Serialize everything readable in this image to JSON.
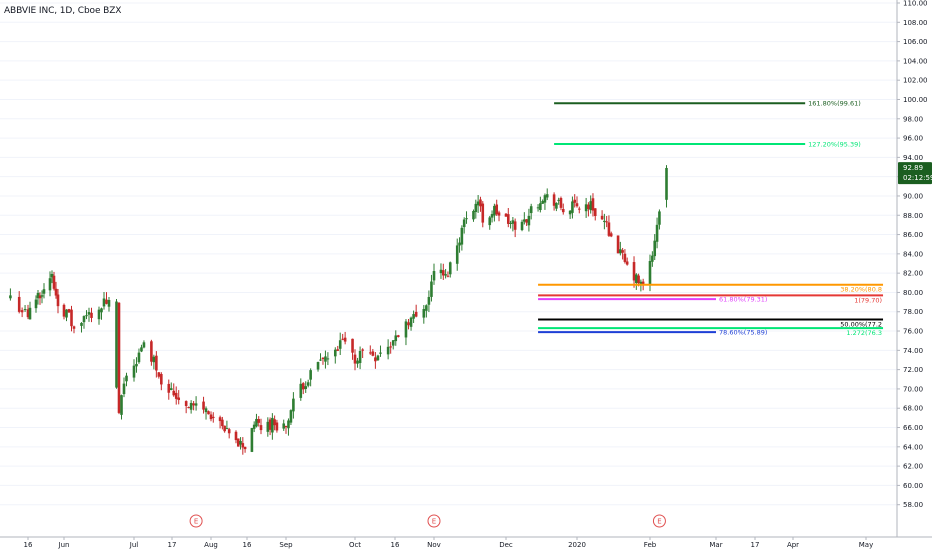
{
  "header": {
    "title": "ABBVIE INC, 1D, Cboe BZX"
  },
  "price_tag": {
    "value": "92.89",
    "countdown": "02:12:59",
    "color": "#1b5e20"
  },
  "colors": {
    "up": "#2e7d32",
    "down": "#c62828",
    "grid": "#f0f3fa"
  },
  "chart_data": {
    "type": "candlestick",
    "ylim": [
      56,
      110
    ],
    "y_ticks": [
      "58.00",
      "60.00",
      "62.00",
      "64.00",
      "66.00",
      "68.00",
      "70.00",
      "72.00",
      "74.00",
      "76.00",
      "78.00",
      "80.00",
      "82.00",
      "84.00",
      "86.00",
      "88.00",
      "90.00",
      "92.00",
      "94.00",
      "96.00",
      "98.00",
      "100.00",
      "102.00",
      "104.00",
      "106.00",
      "108.00",
      "110.00"
    ],
    "x_ticks": [
      "16",
      "Jun",
      "Jul",
      "17",
      "Aug",
      "16",
      "Sep",
      "Oct",
      "16",
      "Nov",
      "Dec",
      "2020",
      "Feb",
      "Mar",
      "17",
      "Apr",
      "May"
    ],
    "earnings_markers": [
      {
        "date": "2019-07-26",
        "label": "E"
      },
      {
        "date": "2019-11-01",
        "label": "E"
      },
      {
        "date": "2020-02-07",
        "label": "E"
      }
    ],
    "gaps": [
      {
        "after": "2019-06-24",
        "before": "2019-06-25"
      }
    ],
    "path": [
      [
        "2019-05-10",
        79.5
      ],
      [
        "2019-05-16",
        77.5
      ],
      [
        "2019-05-20",
        79.5
      ],
      [
        "2019-05-24",
        80.5
      ],
      [
        "2019-05-28",
        81.5
      ],
      [
        "2019-05-31",
        79.0
      ],
      [
        "2019-06-05",
        77.5
      ],
      [
        "2019-06-07",
        76.0
      ],
      [
        "2019-06-12",
        77.5
      ],
      [
        "2019-06-17",
        78.5
      ],
      [
        "2019-06-20",
        79.0
      ],
      [
        "2019-06-24",
        78.5
      ],
      [
        "2019-06-25",
        67.5
      ],
      [
        "2019-06-28",
        71.5
      ],
      [
        "2019-07-02",
        73.0
      ],
      [
        "2019-07-05",
        74.5
      ],
      [
        "2019-07-09",
        73.0
      ],
      [
        "2019-07-12",
        71.0
      ],
      [
        "2019-07-17",
        69.5
      ],
      [
        "2019-07-22",
        68.5
      ],
      [
        "2019-07-29",
        68.0
      ],
      [
        "2019-08-02",
        67.0
      ],
      [
        "2019-08-07",
        65.5
      ],
      [
        "2019-08-12",
        64.5
      ],
      [
        "2019-08-16",
        64.0
      ],
      [
        "2019-08-20",
        66.5
      ],
      [
        "2019-08-23",
        66.0
      ],
      [
        "2019-08-28",
        66.5
      ],
      [
        "2019-09-03",
        66.0
      ],
      [
        "2019-09-06",
        68.5
      ],
      [
        "2019-09-10",
        70.5
      ],
      [
        "2019-09-13",
        71.5
      ],
      [
        "2019-09-18",
        73.0
      ],
      [
        "2019-09-23",
        73.5
      ],
      [
        "2019-09-26",
        75.0
      ],
      [
        "2019-10-01",
        73.0
      ],
      [
        "2019-10-04",
        74.0
      ],
      [
        "2019-10-09",
        73.5
      ],
      [
        "2019-10-15",
        74.5
      ],
      [
        "2019-10-21",
        77.0
      ],
      [
        "2019-10-25",
        77.5
      ],
      [
        "2019-10-30",
        79.5
      ],
      [
        "2019-11-01",
        82.5
      ],
      [
        "2019-11-06",
        81.5
      ],
      [
        "2019-11-11",
        85.0
      ],
      [
        "2019-11-15",
        88.0
      ],
      [
        "2019-11-20",
        89.5
      ],
      [
        "2019-11-22",
        87.5
      ],
      [
        "2019-11-27",
        88.5
      ],
      [
        "2019-12-04",
        87.0
      ],
      [
        "2019-12-09",
        87.0
      ],
      [
        "2019-12-13",
        88.5
      ],
      [
        "2019-12-18",
        90.0
      ],
      [
        "2019-12-23",
        89.5
      ],
      [
        "2019-12-27",
        88.5
      ],
      [
        "2020-01-03",
        89.0
      ],
      [
        "2020-01-08",
        89.0
      ],
      [
        "2020-01-13",
        87.5
      ],
      [
        "2020-01-16",
        86.5
      ],
      [
        "2020-01-21",
        84.0
      ],
      [
        "2020-01-24",
        82.5
      ],
      [
        "2020-01-29",
        81.0
      ],
      [
        "2020-01-31",
        80.5
      ],
      [
        "2020-02-05",
        85.0
      ],
      [
        "2020-02-07",
        88.5
      ],
      [
        "2020-02-10",
        92.9
      ]
    ],
    "fibonacci": [
      {
        "label": "161.80%(99.61)",
        "value": 99.61,
        "color": "#1b5e20",
        "from": "2019-12-23",
        "to": "2020-04-06",
        "label_pos": "inline"
      },
      {
        "label": "127.20%(95.39)",
        "value": 95.39,
        "color": "#00e676",
        "from": "2019-12-23",
        "to": "2020-04-06",
        "label_pos": "inline"
      },
      {
        "label": "38.20%(80.8",
        "value": 80.8,
        "color": "#ff9800",
        "from": "2019-12-16",
        "to": "2020-05-08",
        "label_pos": "end"
      },
      {
        "label": "1(79.70)",
        "value": 79.7,
        "color": "#e53935",
        "from": "2019-12-16",
        "to": "2020-05-08",
        "label_pos": "end"
      },
      {
        "label": "61.80%(79.31)",
        "value": 79.31,
        "color": "#e040fb",
        "from": "2019-12-16",
        "to": "2020-03-02",
        "label_pos": "inline"
      },
      {
        "label": "50.00%(77.2",
        "value": 77.2,
        "color": "#000000",
        "from": "2019-12-16",
        "to": "2020-05-08",
        "label_pos": "end"
      },
      {
        "label": "1.272(76.3",
        "value": 76.3,
        "color": "#00e676",
        "from": "2019-12-16",
        "to": "2020-05-08",
        "label_pos": "end"
      },
      {
        "label": "78.60%(75.89)",
        "value": 75.89,
        "color": "#1e3fd6",
        "from": "2019-12-16",
        "to": "2020-03-02",
        "label_pos": "inline"
      }
    ]
  }
}
